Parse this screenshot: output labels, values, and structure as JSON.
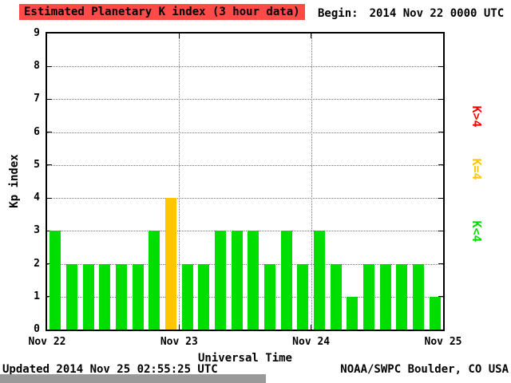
{
  "header": {
    "title": "Estimated Planetary K index (3 hour data)",
    "begin_label": "Begin:",
    "begin_value": "2014 Nov 22 0000 UTC"
  },
  "footer": {
    "updated": "Updated 2014 Nov 25 02:55:25 UTC",
    "source": "NOAA/SWPC Boulder, CO USA"
  },
  "colors": {
    "title_bg": "#ff4a4a",
    "bar_green": "#00dd00",
    "bar_yellow": "#ffc600",
    "bar_red": "#ff0000"
  },
  "chart_data": {
    "type": "bar",
    "title": "Estimated Planetary K index (3 hour data)",
    "xlabel": "Universal Time",
    "ylabel": "Kp index",
    "ylim": [
      0,
      9
    ],
    "y_ticks": [
      0,
      1,
      2,
      3,
      4,
      5,
      6,
      7,
      8,
      9
    ],
    "x_ticks": [
      "Nov 22",
      "Nov 23",
      "Nov 24",
      "Nov 25"
    ],
    "interval_hours": 3,
    "grid": "dotted",
    "legend_position": "right",
    "values": [
      3,
      2,
      2,
      2,
      2,
      2,
      3,
      4,
      2,
      2,
      3,
      3,
      3,
      2,
      3,
      2,
      3,
      2,
      1,
      2,
      2,
      2,
      2,
      1
    ],
    "bar_colors_rule": {
      "below_4": "#00dd00",
      "equal_4": "#ffc600",
      "above_4": "#ff0000"
    },
    "legend": [
      {
        "label": "K>4",
        "color": "#ff0000"
      },
      {
        "label": "K=4",
        "color": "#ffc600"
      },
      {
        "label": "K<4",
        "color": "#00dd00"
      }
    ]
  }
}
